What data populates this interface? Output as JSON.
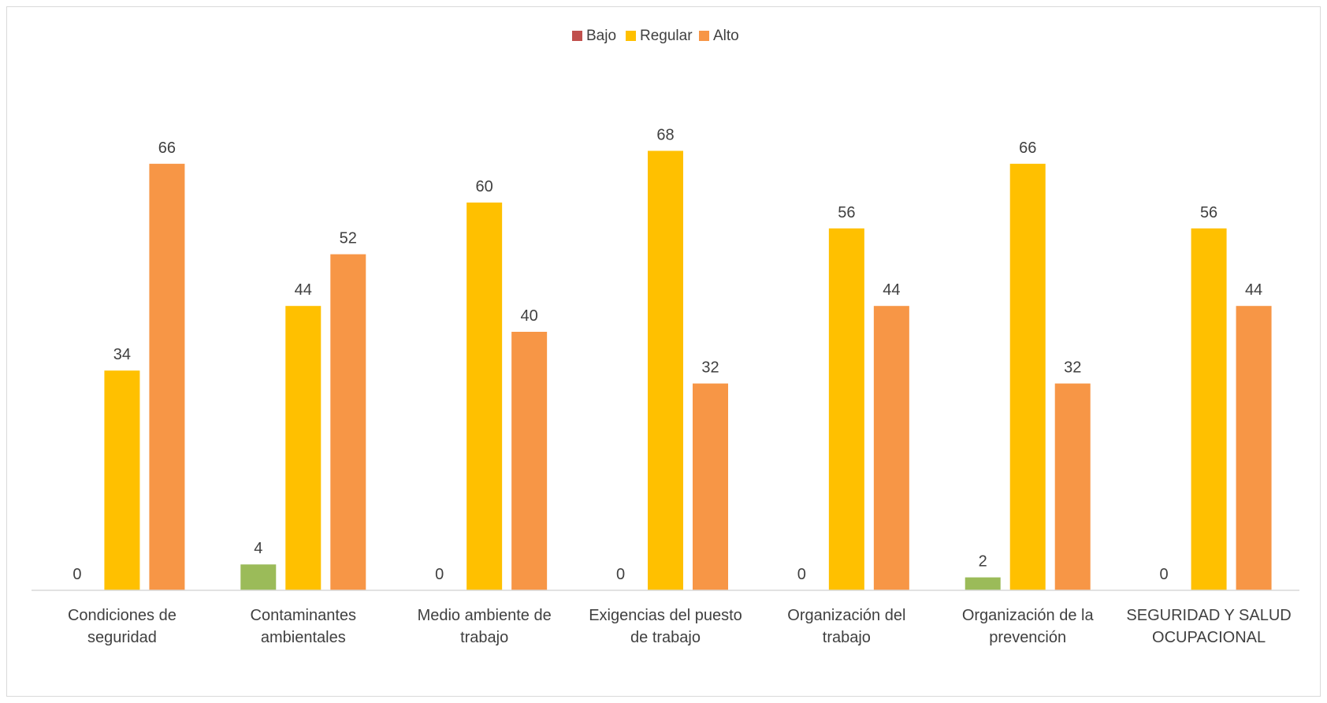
{
  "chart_data": {
    "type": "bar",
    "categories": [
      [
        "Condiciones de",
        "seguridad"
      ],
      [
        "Contaminantes",
        "ambientales"
      ],
      [
        "Medio ambiente de",
        "trabajo"
      ],
      [
        "Exigencias del puesto",
        "de trabajo"
      ],
      [
        "Organización del",
        "trabajo"
      ],
      [
        "Organización de la",
        "prevención"
      ],
      [
        "SEGURIDAD Y SALUD",
        "OCUPACIONAL"
      ]
    ],
    "series": [
      {
        "name": "Bajo",
        "legend_color": "#c0504d",
        "bar_colors": [
          "#9bbb59",
          "#9bbb59",
          "#9bbb59",
          "#9bbb59",
          "#9bbb59",
          "#9bbb59",
          "#9bbb59"
        ],
        "values": [
          0,
          4,
          0,
          0,
          0,
          2,
          0
        ]
      },
      {
        "name": "Regular",
        "legend_color": "#ffc000",
        "bar_colors": [
          "#ffc000",
          "#ffc000",
          "#ffc000",
          "#ffc000",
          "#ffc000",
          "#ffc000",
          "#ffc000"
        ],
        "values": [
          34,
          44,
          60,
          68,
          56,
          66,
          56
        ]
      },
      {
        "name": "Alto",
        "legend_color": "#f79646",
        "bar_colors": [
          "#f79646",
          "#f79646",
          "#f79646",
          "#f79646",
          "#f79646",
          "#f79646",
          "#f79646"
        ],
        "values": [
          66,
          52,
          40,
          32,
          44,
          32,
          44
        ]
      }
    ],
    "ylim": [
      0,
      90
    ],
    "grid": false,
    "legend_position": "top",
    "data_labels": true,
    "title": "",
    "xlabel": "",
    "ylabel": ""
  }
}
